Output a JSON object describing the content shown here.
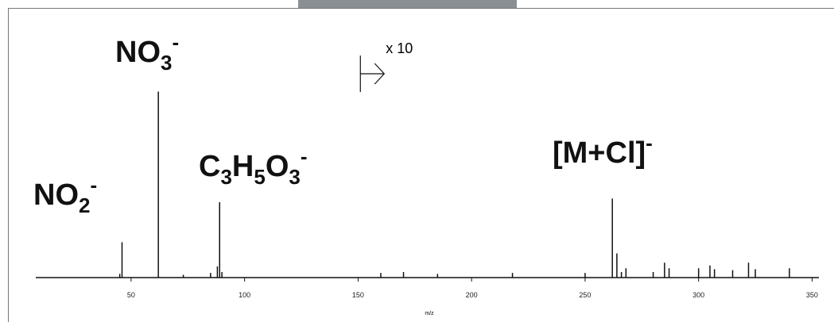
{
  "chart_data": {
    "type": "spectrum",
    "xlabel": "m/z",
    "xlim": [
      8,
      353
    ],
    "ylim": [
      0,
      110
    ],
    "xticks": [
      50,
      100,
      150,
      200,
      250,
      300,
      350
    ],
    "color": "#111111",
    "x": [
      45,
      46,
      62,
      73,
      85,
      88,
      89,
      90,
      160,
      170,
      185,
      218,
      250,
      262,
      264,
      266,
      268,
      280,
      285,
      287,
      300,
      305,
      307,
      315,
      322,
      325,
      340
    ],
    "values": [
      2,
      19,
      100,
      1.5,
      2.5,
      6,
      40.5,
      3,
      2.5,
      3,
      2,
      2.5,
      2.5,
      42.5,
      13,
      3,
      5,
      3,
      8,
      5,
      5,
      6.5,
      4.5,
      4,
      8,
      4.5,
      5
    ],
    "annotations": [
      {
        "parts": [
          {
            "text": "NO"
          },
          {
            "sub": "3"
          },
          {
            "sup": "-"
          }
        ]
      },
      {
        "parts": [
          {
            "text": "NO"
          },
          {
            "sub": "2"
          },
          {
            "sup": "-"
          }
        ]
      },
      {
        "parts": [
          {
            "text": "C"
          },
          {
            "sub": "3"
          },
          {
            "text": "H"
          },
          {
            "sub": "5"
          },
          {
            "text": "O"
          },
          {
            "sub": "3"
          },
          {
            "sup": "-"
          }
        ]
      },
      {
        "parts": [
          {
            "text": "[M+Cl]"
          },
          {
            "sup": "-"
          }
        ]
      }
    ],
    "magnification": {
      "label": "x 10",
      "x": 151
    }
  }
}
